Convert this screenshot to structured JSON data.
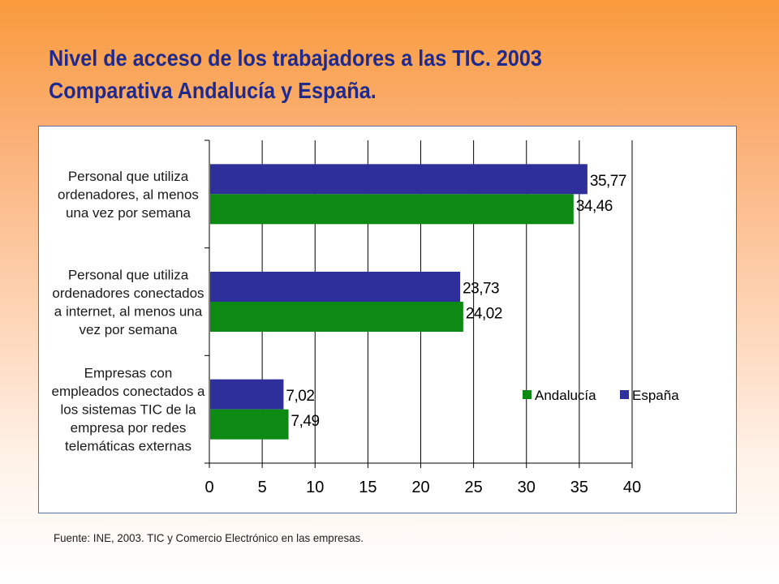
{
  "title": {
    "line1": "Nivel de acceso de los trabajadores a las TIC. 2003",
    "line2": "Comparativa Andalucía y España."
  },
  "source": "Fuente: INE, 2003. TIC y Comercio Electrónico en las empresas.",
  "colors": {
    "andalucia": "#0d8a14",
    "espana": "#2e2f9a",
    "grid": "#000000"
  },
  "chart_data": {
    "type": "bar",
    "orientation": "horizontal",
    "categories": [
      [
        "Personal que utiliza",
        "ordenadores, al menos",
        "una vez por semana"
      ],
      [
        "Personal que utiliza",
        "ordenadores conectados",
        "a internet, al menos una",
        "vez por semana"
      ],
      [
        "Empresas con",
        "empleados conectados a",
        "los sistemas TIC de la",
        "empresa por redes",
        "telemáticas externas"
      ]
    ],
    "series": [
      {
        "name": "España",
        "values": [
          35.77,
          23.73,
          7.02
        ],
        "labels": [
          "35,77",
          "23,73",
          "7,02"
        ]
      },
      {
        "name": "Andalucía",
        "values": [
          34.46,
          24.02,
          7.49
        ],
        "labels": [
          "34,46",
          "24,02",
          "7,49"
        ]
      }
    ],
    "legend": [
      "Andalucía",
      "España"
    ],
    "xlim": [
      0,
      40
    ],
    "xticks": [
      0,
      5,
      10,
      15,
      20,
      25,
      30,
      35,
      40
    ],
    "grid": true,
    "legend_position": "bottom-right"
  }
}
